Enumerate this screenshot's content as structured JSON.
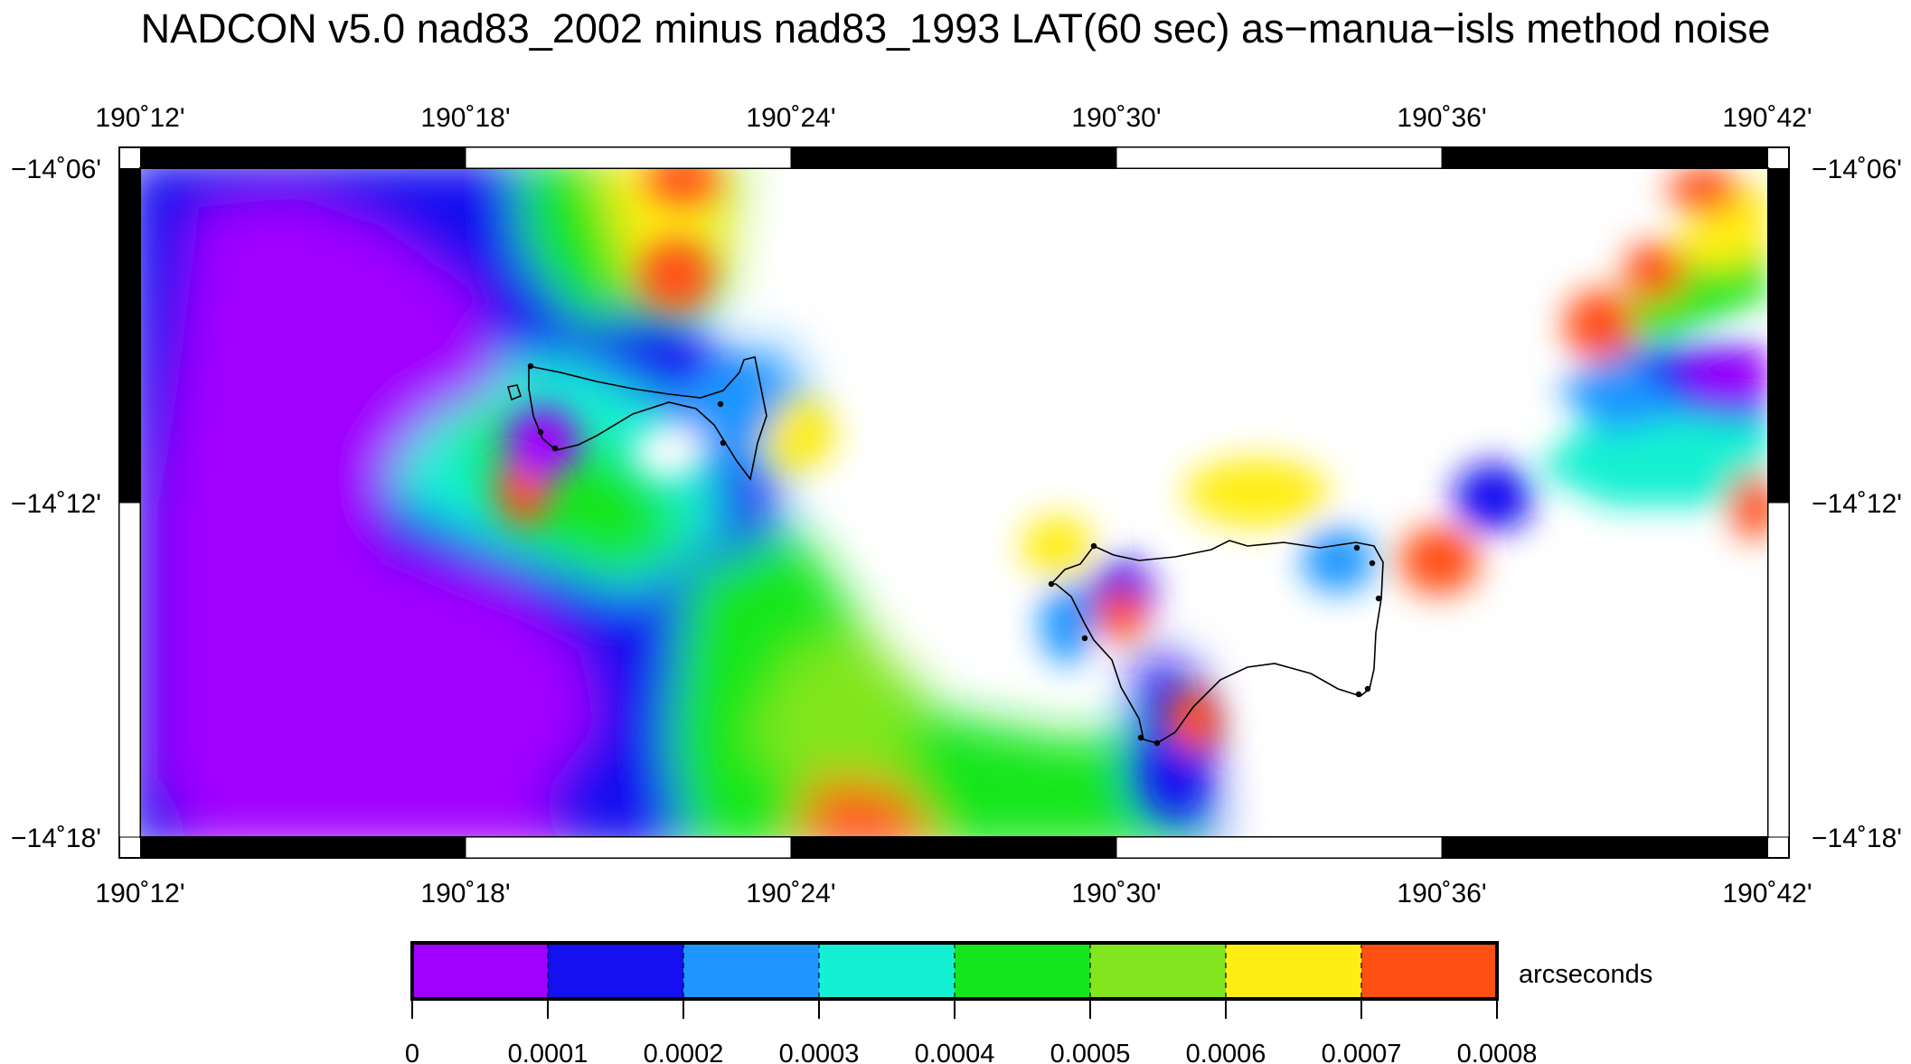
{
  "map": {
    "title": "NADCON v5.0 nad83_2002 minus nad83_1993 LAT(60 sec) as−manua−isls method noise",
    "top_lon_labels": [
      "190˚12'",
      "190˚18'",
      "190˚24'",
      "190˚30'",
      "190˚36'",
      "190˚42'"
    ],
    "bottom_lon_labels": [
      "190˚12'",
      "190˚18'",
      "190˚24'",
      "190˚30'",
      "190˚36'",
      "190˚42'"
    ],
    "left_lat_labels": [
      "−14˚06'",
      "−14˚12'",
      "−14˚18'"
    ],
    "right_lat_labels": [
      "−14˚06'",
      "−14˚12'",
      "−14˚18'"
    ],
    "extent": {
      "lon_min": "190˚12'",
      "lon_max": "190˚42'",
      "lat_min": "−14˚18'",
      "lat_max": "−14˚06'"
    },
    "colorbar": {
      "unit_label": "arcseconds",
      "tick_labels": [
        "0",
        "0.0001",
        "0.0002",
        "0.0003",
        "0.0004",
        "0.0005",
        "0.0006",
        "0.0007",
        "0.0008"
      ],
      "colors": [
        "#a000ff",
        "#1410f0",
        "#1e96ff",
        "#14f0d2",
        "#14e61e",
        "#82e61e",
        "#ffee14",
        "#ff5014"
      ]
    },
    "colors": {
      "background": "#ffffff",
      "frame": "#000000",
      "coastline": "#000000"
    }
  }
}
